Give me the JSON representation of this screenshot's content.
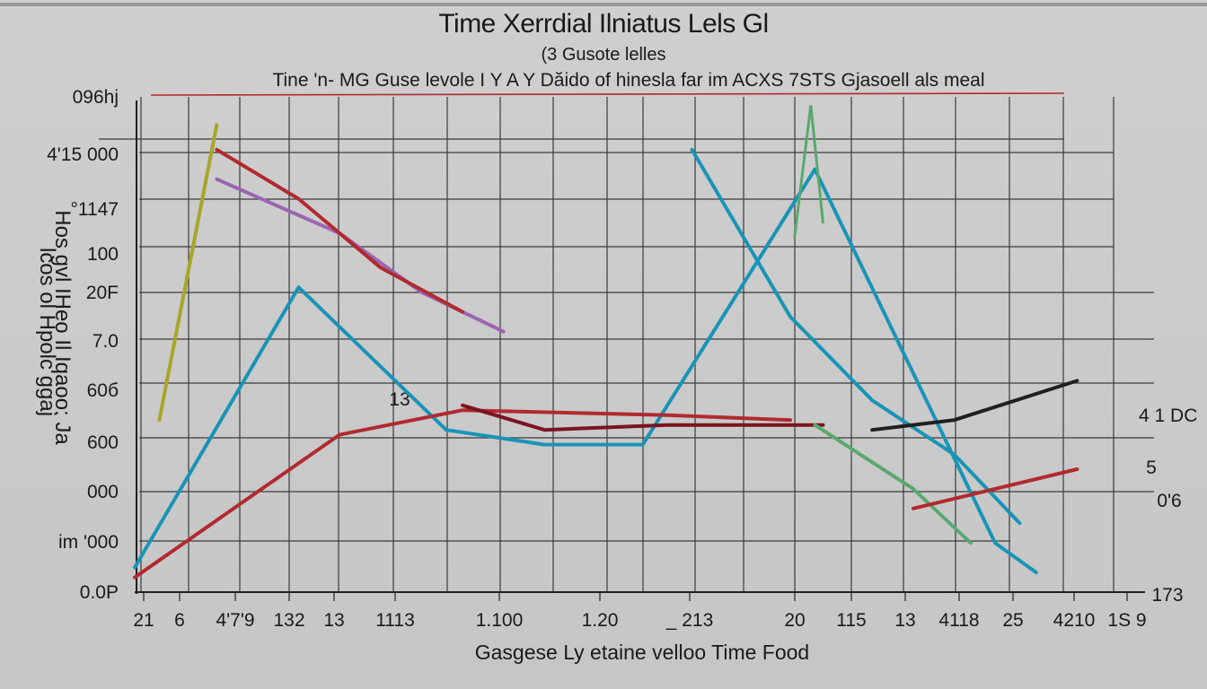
{
  "chart_data": {
    "type": "line",
    "title": "Time Xerrdial Ilniatus Lels  Gl",
    "subtitle": "(3 Gusote lelles",
    "subtitle2": "Tine 'n- MG Guse levole I Y A Y Dăido of hinesla far im ACXS  7STS Gjasoell als meal",
    "xlabel": "Gasgese Ly etaine velloo Time Food",
    "ylabel_outer": "lcos ol Hpolc ggaj",
    "ylabel_inner": "Hos gvl IHeo Il Iqaoo: Ja",
    "y_ticks": [
      "096hj",
      "4'15 000",
      "°1147",
      "100",
      "20F",
      "7.0",
      "60б",
      "600",
      "000",
      "im '000",
      "0.0P"
    ],
    "x_ticks": [
      "21",
      "6",
      "4'7'9",
      "132",
      "13",
      "1113",
      "1.100",
      "1.20",
      "_ 213",
      "20",
      "115",
      "13",
      "4118",
      "25",
      "4210",
      "1S 9"
    ],
    "annotations": [
      "13",
      "4 1 DC",
      "5",
      "0'6",
      "173"
    ],
    "colors": {
      "red": "#b02a30",
      "dark_red": "#7a1420",
      "teal": "#1a94b6",
      "olive": "#a6a62a",
      "purple": "#9a66b2",
      "green": "#5aa86e",
      "black": "#202020"
    },
    "series": [
      {
        "color": "teal",
        "points": [
          [
            0.0,
            0.05
          ],
          [
            2.0,
            0.62
          ],
          [
            3.8,
            0.33
          ],
          [
            5.0,
            0.3
          ],
          [
            6.2,
            0.3
          ],
          [
            8.3,
            0.86
          ],
          [
            10.5,
            0.1
          ],
          [
            11.0,
            0.04
          ]
        ]
      },
      {
        "color": "olive",
        "points": [
          [
            0.3,
            0.35
          ],
          [
            1.0,
            0.95
          ]
        ]
      },
      {
        "color": "red",
        "points": [
          [
            0.0,
            0.03
          ],
          [
            2.5,
            0.32
          ],
          [
            4.0,
            0.37
          ],
          [
            6.5,
            0.36
          ],
          [
            8.0,
            0.35
          ]
        ]
      },
      {
        "color": "dark_red",
        "points": [
          [
            4.0,
            0.38
          ],
          [
            5.0,
            0.33
          ],
          [
            6.5,
            0.34
          ],
          [
            8.4,
            0.34
          ]
        ]
      },
      {
        "color": "purple",
        "points": [
          [
            1.0,
            0.84
          ],
          [
            2.5,
            0.73
          ],
          [
            3.5,
            0.61
          ],
          [
            4.5,
            0.53
          ]
        ]
      },
      {
        "color": "red",
        "points": [
          [
            1.0,
            0.9
          ],
          [
            2.0,
            0.8
          ],
          [
            3.0,
            0.66
          ],
          [
            4.0,
            0.57
          ]
        ]
      },
      {
        "color": "teal",
        "points": [
          [
            6.8,
            0.9
          ],
          [
            8.0,
            0.56
          ],
          [
            9.0,
            0.39
          ],
          [
            10.0,
            0.28
          ],
          [
            10.8,
            0.14
          ]
        ]
      },
      {
        "color": "green",
        "points": [
          [
            8.3,
            0.34
          ],
          [
            9.5,
            0.21
          ],
          [
            10.2,
            0.1
          ]
        ]
      },
      {
        "color": "black",
        "points": [
          [
            9.0,
            0.33
          ],
          [
            10.0,
            0.35
          ],
          [
            11.5,
            0.43
          ]
        ]
      },
      {
        "color": "red",
        "points": [
          [
            9.5,
            0.17
          ],
          [
            11.5,
            0.25
          ]
        ]
      }
    ]
  }
}
